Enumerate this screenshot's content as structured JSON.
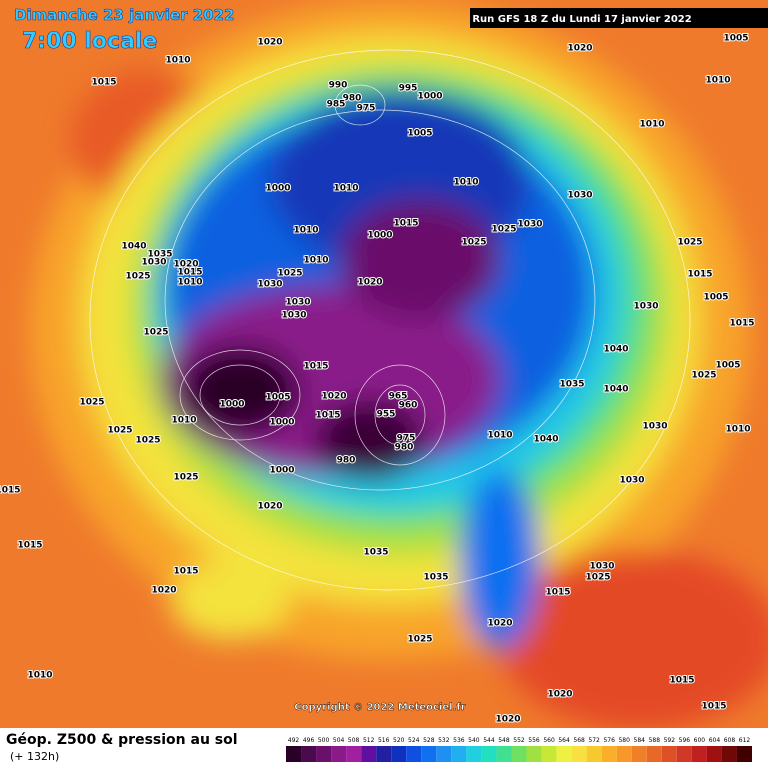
{
  "header": {
    "title": "Dimanche 23 janvier 2022",
    "subtitle": "7:00 locale",
    "run": "Run GFS 18 Z du Lundi 17 janvier 2022"
  },
  "copyright": "Copyright © 2022 Meteociel.fr",
  "footer": {
    "title": "Géop. Z500 & pression au sol",
    "subtitle": "(+ 132h)"
  },
  "colorbar": {
    "labels": [
      492,
      496,
      500,
      504,
      508,
      512,
      516,
      520,
      524,
      528,
      532,
      536,
      540,
      544,
      548,
      552,
      556,
      560,
      564,
      568,
      572,
      576,
      580,
      584,
      588,
      592,
      596,
      600,
      604,
      608,
      612
    ],
    "colors": [
      "#2a0028",
      "#4b0a4b",
      "#6a0f6a",
      "#8a1a8a",
      "#a020a0",
      "#6010a0",
      "#2020a0",
      "#1030c0",
      "#1050e0",
      "#1070f0",
      "#2090f0",
      "#20b0f0",
      "#20d0e0",
      "#20e0c0",
      "#40e090",
      "#70e060",
      "#a0e040",
      "#c8e838",
      "#f0f040",
      "#f8e040",
      "#f8c830",
      "#f8b028",
      "#f89828",
      "#f08028",
      "#e86828",
      "#e05028",
      "#d03828",
      "#c02020",
      "#a01010",
      "#700808",
      "#400000"
    ]
  },
  "isobar_labels": [
    1020,
    1010,
    1015,
    990,
    980,
    985,
    975,
    995,
    1000,
    1005,
    1010,
    1020,
    1005,
    1010,
    1000,
    1010,
    1010,
    1030,
    1015,
    1000,
    1025,
    1025,
    1030,
    1025,
    1010,
    1040,
    1035,
    1030,
    1020,
    1015,
    1010,
    1025,
    1025,
    1030,
    1010,
    1020,
    1015,
    1005,
    1030,
    1030,
    1030,
    1015,
    1025,
    1040,
    1015,
    1005,
    1025,
    1035,
    1040,
    1025,
    1000,
    1005,
    1020,
    965,
    960,
    955,
    1010,
    1000,
    1015,
    1025,
    1025,
    1010,
    1040,
    1030,
    1010,
    980,
    975,
    980,
    1000,
    1025,
    1030,
    1020,
    1015,
    1035,
    1035,
    1030,
    1025,
    1015,
    1020,
    1015,
    1020,
    1015,
    1025,
    1010,
    1020,
    1015,
    1015,
    1020
  ]
}
